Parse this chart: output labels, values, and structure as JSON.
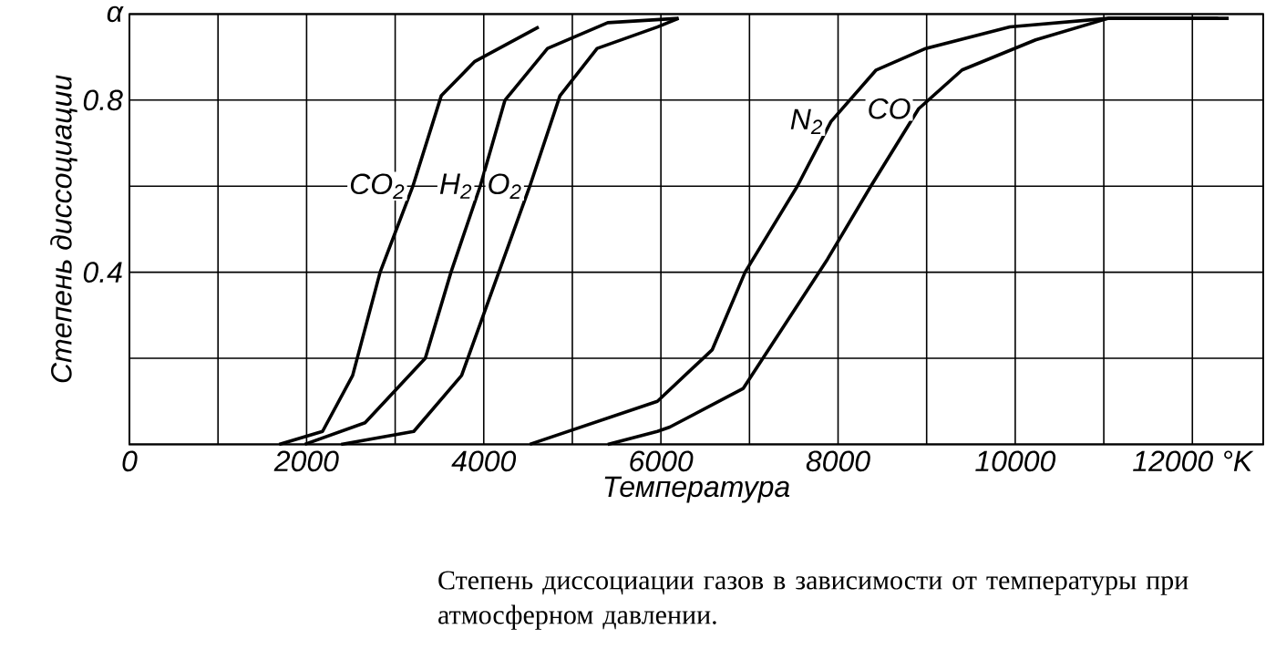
{
  "chart_data": {
    "type": "line",
    "xlabel": "Температура",
    "ylabel": "Степень диссоциации",
    "annotations": [
      "Степень диссоциации газов в зависимости от температуры при атмосферном давлении."
    ],
    "xlim": [
      0,
      12800
    ],
    "ylim": [
      0,
      1.0
    ],
    "xticks": [
      0,
      {
        "value": 1000,
        "label": null
      },
      2000,
      {
        "value": 3000,
        "label": null
      },
      4000,
      {
        "value": 5000,
        "label": null
      },
      6000,
      {
        "value": 7000,
        "label": null
      },
      8000,
      {
        "value": 9000,
        "label": null
      },
      10000,
      {
        "value": 11000,
        "label": null
      },
      {
        "value": 12000,
        "label": "12000 °K"
      }
    ],
    "yticks": [
      {
        "value": 0,
        "label": null
      },
      {
        "value": 0.2,
        "label": null
      },
      0.4,
      {
        "value": 0.6,
        "label": null
      },
      0.8,
      {
        "value": 1.0,
        "label": "α"
      }
    ],
    "grid": true,
    "marker": "none",
    "line_style": "solid",
    "series": [
      {
        "name": "CO$_{2}$",
        "color": "#000000",
        "x": [
          1690,
          2180,
          2520,
          2830,
          3200,
          3520,
          3900,
          4620
        ],
        "values": [
          0,
          0.03,
          0.16,
          0.4,
          0.6,
          0.81,
          0.89,
          0.97
        ]
      },
      {
        "name": "H$_{2}$",
        "color": "#000000",
        "x": [
          1980,
          2660,
          3340,
          3630,
          3960,
          4240,
          4720,
          5400,
          6200
        ],
        "values": [
          0,
          0.05,
          0.2,
          0.4,
          0.6,
          0.8,
          0.92,
          0.98,
          0.99
        ]
      },
      {
        "name": "O$_{2}$",
        "color": "#000000",
        "x": [
          2390,
          3210,
          3750,
          4170,
          4520,
          4860,
          5280,
          5960,
          6200
        ],
        "values": [
          0,
          0.03,
          0.16,
          0.4,
          0.6,
          0.81,
          0.92,
          0.97,
          0.99
        ]
      },
      {
        "name": "N$_{2}$",
        "color": "#000000",
        "x": [
          4520,
          5960,
          6580,
          6950,
          7540,
          7920,
          8430,
          8990,
          9940,
          11050,
          12290
        ],
        "values": [
          0,
          0.1,
          0.22,
          0.4,
          0.6,
          0.75,
          0.87,
          0.92,
          0.97,
          0.99,
          0.99
        ]
      },
      {
        "name": "CO",
        "color": "#000000",
        "x": [
          5400,
          5960,
          6100,
          6930,
          7880,
          8370,
          8910,
          9400,
          10230,
          11050,
          12410
        ],
        "values": [
          0,
          0.03,
          0.04,
          0.13,
          0.43,
          0.6,
          0.78,
          0.87,
          0.94,
          0.99,
          0.99
        ]
      }
    ]
  }
}
